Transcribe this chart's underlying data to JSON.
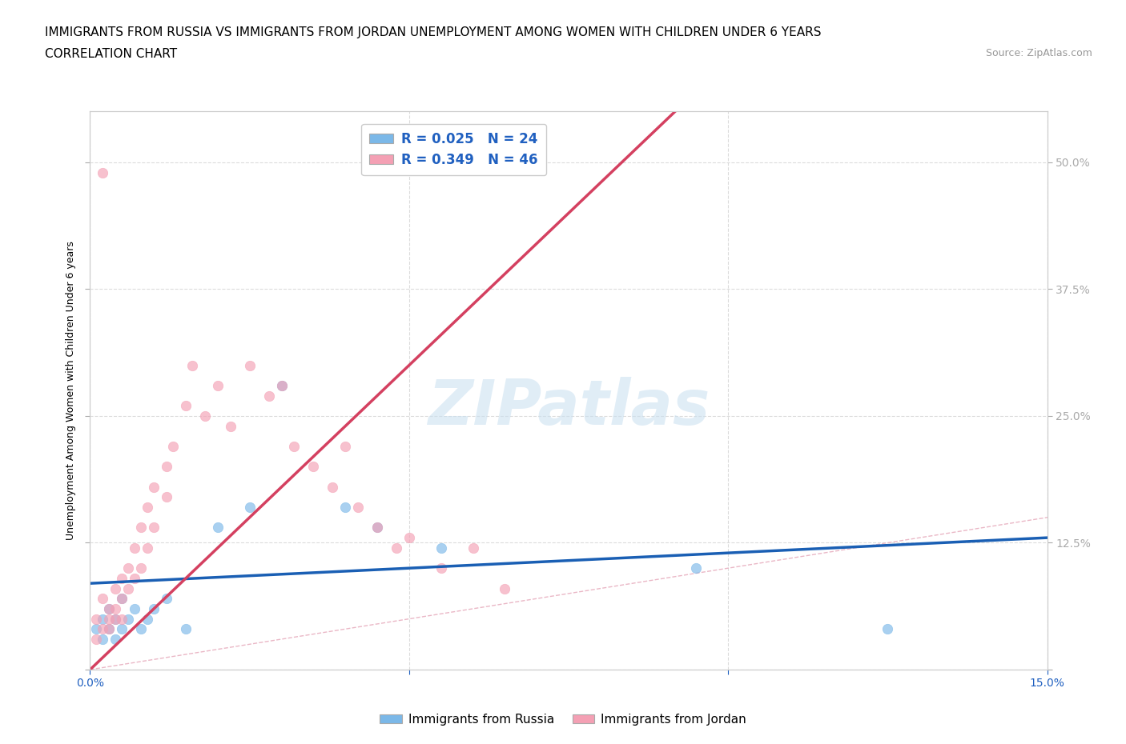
{
  "title_line1": "IMMIGRANTS FROM RUSSIA VS IMMIGRANTS FROM JORDAN UNEMPLOYMENT AMONG WOMEN WITH CHILDREN UNDER 6 YEARS",
  "title_line2": "CORRELATION CHART",
  "source_text": "Source: ZipAtlas.com",
  "ylabel": "Unemployment Among Women with Children Under 6 years",
  "xlim": [
    0.0,
    0.15
  ],
  "ylim": [
    0.0,
    0.55
  ],
  "xtick_positions": [
    0.0,
    0.05,
    0.1,
    0.15
  ],
  "xticklabels_show": [
    "0.0%",
    "",
    "",
    "15.0%"
  ],
  "ytick_positions": [
    0.0,
    0.125,
    0.25,
    0.375,
    0.5
  ],
  "yticklabels_show": [
    "",
    "12.5%",
    "25.0%",
    "37.5%",
    "50.0%"
  ],
  "watermark": "ZIPatlas",
  "russia_x": [
    0.001,
    0.002,
    0.002,
    0.003,
    0.003,
    0.004,
    0.004,
    0.005,
    0.005,
    0.006,
    0.007,
    0.008,
    0.009,
    0.01,
    0.012,
    0.015,
    0.02,
    0.025,
    0.03,
    0.04,
    0.045,
    0.055,
    0.095,
    0.125
  ],
  "russia_y": [
    0.04,
    0.05,
    0.03,
    0.06,
    0.04,
    0.05,
    0.03,
    0.07,
    0.04,
    0.05,
    0.06,
    0.04,
    0.05,
    0.06,
    0.07,
    0.04,
    0.14,
    0.16,
    0.28,
    0.16,
    0.14,
    0.12,
    0.1,
    0.04
  ],
  "jordan_x": [
    0.001,
    0.001,
    0.002,
    0.002,
    0.003,
    0.003,
    0.003,
    0.004,
    0.004,
    0.004,
    0.005,
    0.005,
    0.005,
    0.006,
    0.006,
    0.007,
    0.007,
    0.008,
    0.008,
    0.009,
    0.009,
    0.01,
    0.01,
    0.012,
    0.012,
    0.013,
    0.015,
    0.016,
    0.018,
    0.02,
    0.022,
    0.025,
    0.028,
    0.03,
    0.032,
    0.035,
    0.038,
    0.04,
    0.042,
    0.045,
    0.048,
    0.05,
    0.055,
    0.06,
    0.065,
    0.002
  ],
  "jordan_y": [
    0.05,
    0.03,
    0.07,
    0.04,
    0.06,
    0.05,
    0.04,
    0.08,
    0.06,
    0.05,
    0.09,
    0.07,
    0.05,
    0.1,
    0.08,
    0.12,
    0.09,
    0.14,
    0.1,
    0.16,
    0.12,
    0.18,
    0.14,
    0.2,
    0.17,
    0.22,
    0.26,
    0.3,
    0.25,
    0.28,
    0.24,
    0.3,
    0.27,
    0.28,
    0.22,
    0.2,
    0.18,
    0.22,
    0.16,
    0.14,
    0.12,
    0.13,
    0.1,
    0.12,
    0.08,
    0.49
  ],
  "russia_color": "#7bb8e8",
  "jordan_color": "#f4a0b4",
  "russia_line_color": "#1a5fb4",
  "jordan_line_color": "#d44060",
  "diagonal_color": "#e8b0c0",
  "grid_color": "#d8d8d8",
  "background_color": "#ffffff",
  "tick_color": "#2060c0",
  "title_fontsize": 11,
  "axis_label_fontsize": 9,
  "tick_fontsize": 10,
  "source_fontsize": 9
}
